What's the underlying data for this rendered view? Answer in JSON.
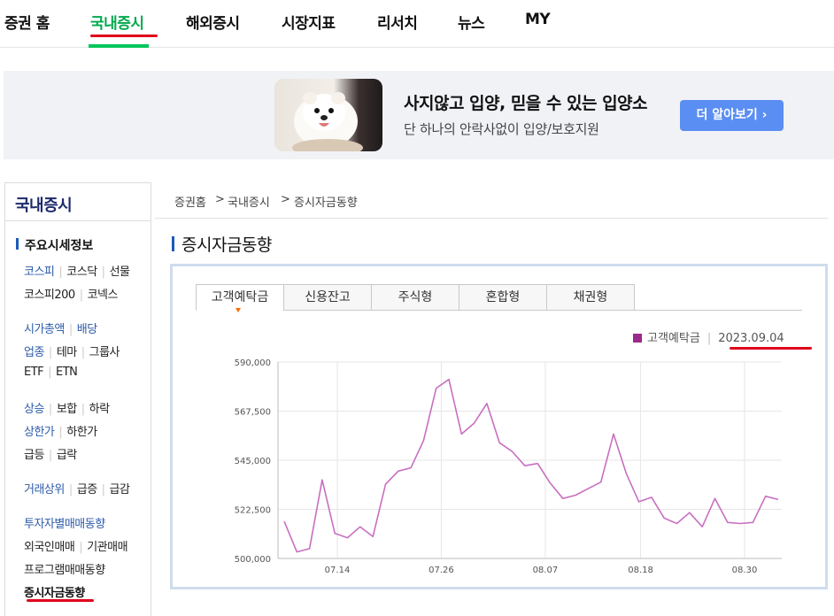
{
  "nav": {
    "tabs": [
      "증권 홈",
      "국내증시",
      "해외증시",
      "시장지표",
      "리서치",
      "뉴스",
      "MY"
    ],
    "active": "국내증시"
  },
  "banner": {
    "title": "사지않고 입양, 믿을 수 있는 입양소",
    "subtitle": "단 하나의 안락사없이 입양/보호지원",
    "button": "더 알아보기 ›"
  },
  "sidebar": {
    "title": "국내증시",
    "section": "주요시세정보",
    "rows": [
      [
        {
          "t": "코스피",
          "blue": true
        },
        {
          "t": "코스닥"
        },
        {
          "t": "선물"
        }
      ],
      [
        {
          "t": "코스피200"
        },
        {
          "t": "코넥스"
        }
      ],
      [
        {
          "t": "시가총액",
          "blue": true
        },
        {
          "t": "배당",
          "blue": true
        }
      ],
      [
        {
          "t": "업종",
          "blue": true
        },
        {
          "t": "테마"
        },
        {
          "t": "그룹사"
        }
      ],
      [
        {
          "t": "ETF"
        },
        {
          "t": "ETN"
        }
      ],
      [
        {
          "t": "상승",
          "blue": true
        },
        {
          "t": "보합"
        },
        {
          "t": "하락"
        }
      ],
      [
        {
          "t": "상한가",
          "blue": true
        },
        {
          "t": "하한가"
        }
      ],
      [
        {
          "t": "급등"
        },
        {
          "t": "급락"
        }
      ],
      [
        {
          "t": "거래상위",
          "blue": true
        },
        {
          "t": "급증"
        },
        {
          "t": "급감"
        }
      ],
      [
        {
          "t": "투자자별매매동향",
          "blue": true
        }
      ],
      [
        {
          "t": "외국인매매"
        },
        {
          "t": "기관매매"
        }
      ],
      [
        {
          "t": "프로그램매매동향"
        }
      ],
      [
        {
          "t": "증시자금동향",
          "bold": true
        }
      ]
    ]
  },
  "breadcrumb": [
    "증권홈",
    ">",
    "국내증시",
    ">",
    "증시자금동향"
  ],
  "page_title": "증시자금동향",
  "chart_tabs": [
    "고객예탁금",
    "신용잔고",
    "주식형",
    "혼합형",
    "채권형"
  ],
  "active_chart_tab": "고객예탁금",
  "legend": {
    "series": "고객예탁금",
    "date": "2023.09.04"
  },
  "colors": {
    "accent_green": "#03c75a",
    "series": "#c86fc0",
    "legend_square": "#9c2a8a",
    "annotation_red": "#e0001a"
  },
  "chart_data": {
    "type": "line",
    "series": [
      {
        "name": "고객예탁금",
        "values": [
          517000,
          503000,
          504500,
          536000,
          511500,
          509500,
          514500,
          510000,
          534000,
          540000,
          541500,
          554000,
          578000,
          582000,
          557000,
          562000,
          571000,
          553000,
          549000,
          542500,
          543500,
          534500,
          527500,
          529000,
          532000,
          535000,
          557000,
          539000,
          526000,
          528000,
          518500,
          516000,
          521000,
          514500,
          527500,
          516500,
          516000,
          516500,
          528500,
          527000
        ]
      }
    ],
    "x_tick_labels": [
      "07.14",
      "07.26",
      "08.07",
      "08.18",
      "08.30"
    ],
    "x_tick_index": [
      6,
      18,
      30,
      41,
      53
    ],
    "x_points": [
      1,
      2,
      3,
      4,
      5,
      6,
      7,
      8,
      9,
      10,
      11,
      12,
      13,
      14,
      15,
      16,
      17,
      18,
      19,
      20,
      21,
      22,
      23,
      24,
      25,
      26,
      27,
      28,
      29,
      30,
      31,
      32,
      33,
      34,
      35,
      36,
      37,
      38,
      39,
      40
    ],
    "y_ticks": [
      "590,000",
      "567,500",
      "545,000",
      "522,500",
      "500,000"
    ],
    "ylim": [
      500000,
      590000
    ],
    "grid": true
  }
}
